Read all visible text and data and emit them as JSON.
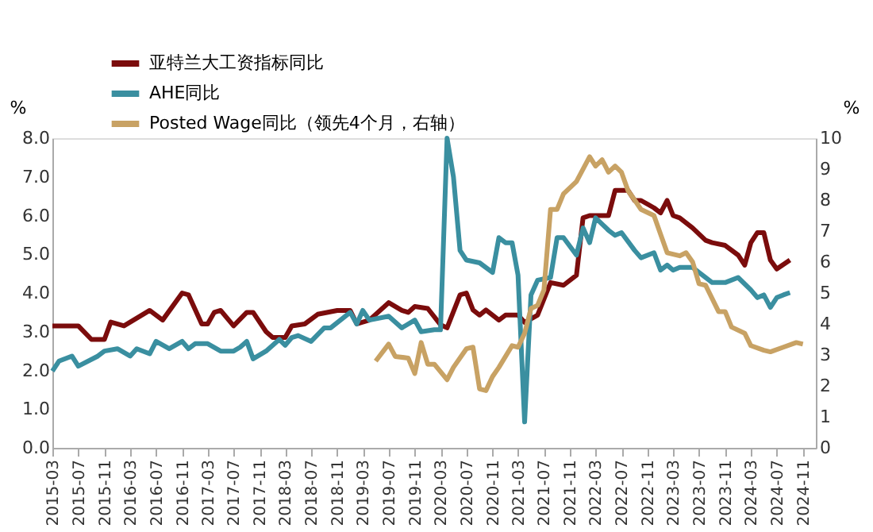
{
  "chart_data": {
    "type": "line",
    "ylabel": "%",
    "y2label": "%",
    "legend": "top",
    "grid": false,
    "line_style": "solid",
    "marker": "none",
    "xlim": [
      "2015-03",
      "2025-01"
    ],
    "xticks": [
      "2015-03",
      "2015-07",
      "2015-11",
      "2016-03",
      "2016-07",
      "2016-11",
      "2017-03",
      "2017-07",
      "2017-11",
      "2018-03",
      "2018-07",
      "2018-11",
      "2019-03",
      "2019-07",
      "2019-11",
      "2020-03",
      "2020-07",
      "2020-11",
      "2021-03",
      "2021-07",
      "2021-11",
      "2022-03",
      "2022-07",
      "2022-11",
      "2023-03",
      "2023-07",
      "2023-11",
      "2024-03",
      "2024-07",
      "2024-11"
    ],
    "ylim": [
      0,
      8
    ],
    "yticks": [
      {
        "value": 0,
        "label": "0.0"
      },
      {
        "value": 1,
        "label": "1.0"
      },
      {
        "value": 2,
        "label": "2.0"
      },
      {
        "value": 3,
        "label": "3.0"
      },
      {
        "value": 4,
        "label": "4.0"
      },
      {
        "value": 5,
        "label": "5.0"
      },
      {
        "value": 6,
        "label": "6.0"
      },
      {
        "value": 7,
        "label": "7.0"
      },
      {
        "value": 8,
        "label": "8.0"
      }
    ],
    "y2lim": [
      0,
      10
    ],
    "y2ticks": [
      0,
      1,
      2,
      3,
      4,
      5,
      6,
      7,
      8,
      9,
      10
    ],
    "series": [
      {
        "name": "亚特兰大工资指标同比",
        "color": "#7b0c0c",
        "x": [
          "2015-03",
          "2015-07",
          "2015-09",
          "2015-11",
          "2015-12",
          "2016-02",
          "2016-06",
          "2016-08",
          "2016-11",
          "2016-12",
          "2017-02",
          "2017-03",
          "2017-04",
          "2017-05",
          "2017-07",
          "2017-09",
          "2017-10",
          "2017-12",
          "2018-01",
          "2018-03",
          "2018-04",
          "2018-06",
          "2018-08",
          "2018-11",
          "2019-01",
          "2019-02",
          "2019-04",
          "2019-07",
          "2019-09",
          "2019-10",
          "2019-11",
          "2020-01",
          "2020-03",
          "2020-04",
          "2020-06",
          "2020-07",
          "2020-08",
          "2020-09",
          "2020-10",
          "2020-12",
          "2021-01",
          "2021-03",
          "2021-04",
          "2021-06",
          "2021-08",
          "2021-10",
          "2021-12",
          "2022-01",
          "2022-02",
          "2022-05",
          "2022-06",
          "2022-08",
          "2022-09",
          "2022-10",
          "2022-12",
          "2023-01",
          "2023-02",
          "2023-03",
          "2023-04",
          "2023-06",
          "2023-08",
          "2023-09",
          "2023-11",
          "2024-01",
          "2024-02",
          "2024-03",
          "2024-04",
          "2024-05",
          "2024-06",
          "2024-07",
          "2024-09"
        ],
        "values": [
          3.15,
          3.15,
          2.8,
          2.8,
          3.25,
          3.15,
          3.55,
          3.3,
          4.0,
          3.95,
          3.2,
          3.2,
          3.5,
          3.55,
          3.15,
          3.5,
          3.5,
          3.0,
          2.85,
          2.85,
          3.15,
          3.2,
          3.45,
          3.55,
          3.55,
          3.2,
          3.3,
          3.75,
          3.55,
          3.5,
          3.65,
          3.6,
          3.18,
          3.1,
          3.95,
          4.0,
          3.56,
          3.43,
          3.56,
          3.3,
          3.43,
          3.43,
          3.24,
          3.43,
          4.27,
          4.2,
          4.46,
          5.94,
          6.0,
          6.0,
          6.65,
          6.65,
          6.39,
          6.39,
          6.2,
          6.07,
          6.39,
          6.0,
          5.94,
          5.68,
          5.36,
          5.3,
          5.23,
          4.98,
          4.72,
          5.3,
          5.56,
          5.56,
          4.85,
          4.62,
          4.85
        ]
      },
      {
        "name": "AHE同比",
        "color": "#3a8fa0",
        "x": [
          "2015-03",
          "2015-04",
          "2015-06",
          "2015-07",
          "2015-10",
          "2015-11",
          "2016-01",
          "2016-03",
          "2016-04",
          "2016-06",
          "2016-07",
          "2016-09",
          "2016-11",
          "2016-12",
          "2017-01",
          "2017-03",
          "2017-05",
          "2017-07",
          "2017-08",
          "2017-09",
          "2017-10",
          "2017-12",
          "2018-02",
          "2018-03",
          "2018-04",
          "2018-05",
          "2018-07",
          "2018-09",
          "2018-10",
          "2019-01",
          "2019-02",
          "2019-03",
          "2019-04",
          "2019-07",
          "2019-09",
          "2019-11",
          "2019-12",
          "2020-02",
          "2020-03",
          "2020-04",
          "2020-05",
          "2020-06",
          "2020-07",
          "2020-09",
          "2020-11",
          "2020-12",
          "2021-01",
          "2021-02",
          "2021-03",
          "2021-04",
          "2021-05",
          "2021-06",
          "2021-08",
          "2021-09",
          "2021-10",
          "2021-12",
          "2022-01",
          "2022-02",
          "2022-03",
          "2022-05",
          "2022-06",
          "2022-07",
          "2022-09",
          "2022-10",
          "2022-12",
          "2023-01",
          "2023-02",
          "2023-03",
          "2023-04",
          "2023-06",
          "2023-07",
          "2023-09",
          "2023-11",
          "2024-01",
          "2024-03",
          "2024-04",
          "2024-05",
          "2024-06",
          "2024-07",
          "2024-08",
          "2024-09"
        ],
        "values": [
          1.98,
          2.24,
          2.37,
          2.11,
          2.37,
          2.5,
          2.56,
          2.37,
          2.56,
          2.43,
          2.75,
          2.56,
          2.75,
          2.56,
          2.69,
          2.69,
          2.5,
          2.5,
          2.6,
          2.75,
          2.3,
          2.5,
          2.8,
          2.65,
          2.85,
          2.9,
          2.75,
          3.1,
          3.1,
          3.5,
          3.2,
          3.55,
          3.3,
          3.4,
          3.1,
          3.3,
          3.0,
          3.05,
          3.05,
          8.0,
          7.0,
          5.1,
          4.85,
          4.78,
          4.53,
          5.43,
          5.3,
          5.3,
          4.46,
          0.67,
          3.95,
          4.33,
          4.4,
          5.43,
          5.43,
          4.98,
          5.68,
          5.3,
          5.94,
          5.62,
          5.49,
          5.56,
          5.1,
          4.91,
          5.04,
          4.59,
          4.72,
          4.59,
          4.66,
          4.66,
          4.53,
          4.27,
          4.27,
          4.4,
          4.08,
          3.88,
          3.95,
          3.63,
          3.88,
          3.95,
          4.01
        ]
      },
      {
        "name": "Posted Wage同比（领先4个月，右轴）",
        "color": "#c8a264",
        "axis": "y2",
        "x": [
          "2019-05",
          "2019-07",
          "2019-08",
          "2019-10",
          "2019-11",
          "2019-12",
          "2020-01",
          "2020-02",
          "2020-04",
          "2020-05",
          "2020-07",
          "2020-08",
          "2020-09",
          "2020-10",
          "2020-11",
          "2020-12",
          "2021-02",
          "2021-03",
          "2021-04",
          "2021-05",
          "2021-06",
          "2021-07",
          "2021-08",
          "2021-09",
          "2021-10",
          "2021-12",
          "2022-02",
          "2022-03",
          "2022-04",
          "2022-05",
          "2022-06",
          "2022-07",
          "2022-08",
          "2022-09",
          "2022-10",
          "2022-12",
          "2023-01",
          "2023-02",
          "2023-04",
          "2023-05",
          "2023-06",
          "2023-07",
          "2023-08",
          "2023-10",
          "2023-11",
          "2023-12",
          "2024-02",
          "2024-03",
          "2024-05",
          "2024-06",
          "2024-08",
          "2024-10",
          "2024-11"
        ],
        "values": [
          2.8,
          3.35,
          2.95,
          2.9,
          2.4,
          3.4,
          2.7,
          2.7,
          2.2,
          2.6,
          3.2,
          3.25,
          1.9,
          1.85,
          2.3,
          2.6,
          3.3,
          3.25,
          3.7,
          4.5,
          4.6,
          5.1,
          7.7,
          7.7,
          8.2,
          8.6,
          9.4,
          9.1,
          9.3,
          8.9,
          9.1,
          8.9,
          8.3,
          8.0,
          7.7,
          7.5,
          6.9,
          6.3,
          6.2,
          6.3,
          6.0,
          5.3,
          5.25,
          4.4,
          4.4,
          3.9,
          3.7,
          3.3,
          3.15,
          3.1,
          3.25,
          3.4,
          3.35
        ]
      }
    ]
  }
}
